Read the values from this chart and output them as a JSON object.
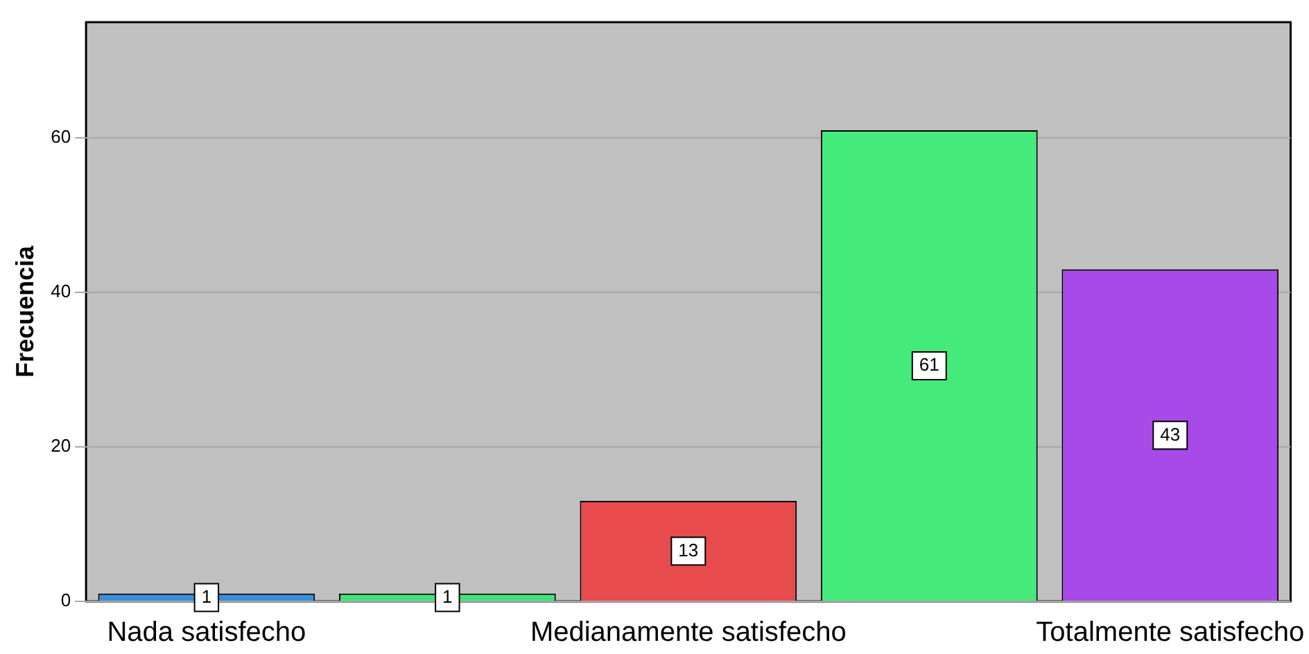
{
  "chart_data": {
    "type": "bar",
    "ylabel": "Frecuencia",
    "categories": [
      "Nada satisfecho",
      null,
      "Medianamente satisfecho",
      null,
      "Totalmente satisfecho"
    ],
    "values": [
      1,
      1,
      13,
      61,
      43
    ],
    "colors": [
      "#3a8fd9",
      "#44e27a",
      "#e84b4b",
      "#44ea7a",
      "#a74ae8"
    ],
    "ylim": [
      0,
      75
    ],
    "yticks": [
      0,
      20,
      40,
      60
    ],
    "grid": "y",
    "data_labels": true,
    "legend": false
  }
}
